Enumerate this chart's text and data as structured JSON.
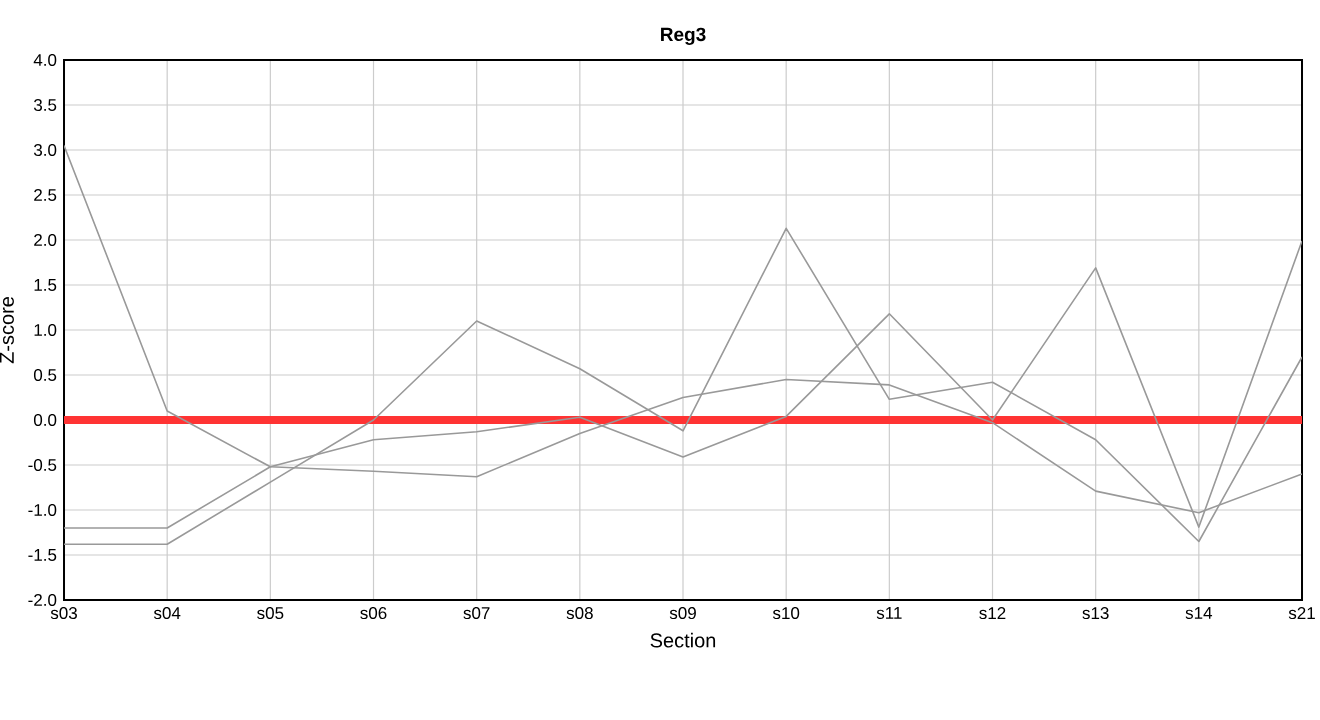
{
  "chart_data": {
    "type": "line",
    "title": "Reg3",
    "xlabel": "Section",
    "ylabel": "Z-score",
    "categories": [
      "s03",
      "s04",
      "s05",
      "s06",
      "s07",
      "s08",
      "s09",
      "s10",
      "s11",
      "s12",
      "s13",
      "s14",
      "s21"
    ],
    "series": [
      {
        "color": "#999999",
        "values": [
          3.05,
          0.1,
          -0.52,
          -0.57,
          -0.63,
          -0.15,
          0.25,
          0.45,
          0.39,
          -0.03,
          -0.79,
          -1.03,
          -0.6
        ]
      },
      {
        "color": "#999999",
        "values": [
          -1.2,
          -1.2,
          -0.52,
          -0.22,
          -0.13,
          0.03,
          -0.41,
          0.04,
          1.18,
          0.0,
          1.69,
          -1.19,
          1.99
        ]
      },
      {
        "color": "#999999",
        "values": [
          -1.38,
          -1.38,
          -0.69,
          0.0,
          1.1,
          0.57,
          -0.12,
          2.13,
          0.23,
          0.42,
          -0.22,
          -1.35,
          0.7
        ]
      }
    ],
    "ylim": [
      -2.0,
      4.0
    ],
    "yticks": [
      {
        "value": -2.0,
        "label": "-2.0"
      },
      {
        "value": -1.5,
        "label": "-1.5"
      },
      {
        "value": -1.0,
        "label": "-1.0"
      },
      {
        "value": -0.5,
        "label": "-0.5"
      },
      {
        "value": 0,
        "label": "0.0"
      },
      {
        "value": 0.5,
        "label": "0.5"
      },
      {
        "value": 1.0,
        "label": "1.0"
      },
      {
        "value": 1.5,
        "label": "1.5"
      },
      {
        "value": 2.0,
        "label": "2.0"
      },
      {
        "value": 2.5,
        "label": "2.5"
      },
      {
        "value": 3.0,
        "label": "3.0"
      },
      {
        "value": 3.5,
        "label": "3.5"
      },
      {
        "value": 4.0,
        "label": "4.0"
      }
    ],
    "ref_lines": [
      {
        "axis": "y",
        "value": 0,
        "color": "#ff3333"
      }
    ],
    "grid": true,
    "legend": false,
    "marker": "none",
    "line_style": "solid"
  }
}
